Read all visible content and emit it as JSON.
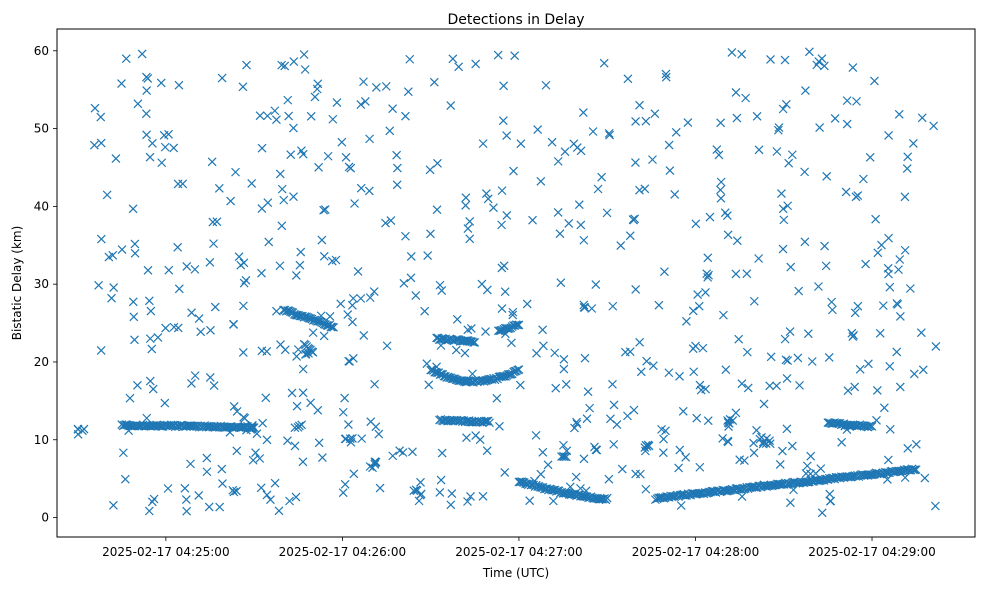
{
  "chart_data": {
    "type": "scatter",
    "title": "Detections in Delay",
    "xlabel": "Time (UTC)",
    "ylabel": "Bistatic Delay (km)",
    "marker": "x",
    "color": "#1f77b4",
    "xlim": [
      "2025-02-17 04:24:23",
      "2025-02-17 04:29:35"
    ],
    "ylim": [
      -2.5,
      62.8
    ],
    "x_ticks": [
      "2025-02-17 04:25:00",
      "2025-02-17 04:26:00",
      "2025-02-17 04:27:00",
      "2025-02-17 04:28:00",
      "2025-02-17 04:29:00"
    ],
    "y_ticks": [
      0,
      10,
      20,
      30,
      40,
      50,
      60
    ],
    "grid": false,
    "legend": false,
    "tracks": [
      {
        "t_start": "2025-02-17 04:25:40",
        "t_end": "2025-02-17 04:25:57",
        "y_start": 26.7,
        "y_end": 24.5,
        "shape": "linear"
      },
      {
        "t_start": "2025-02-17 04:25:47",
        "t_end": "2025-02-17 04:25:50",
        "y_start": 22.2,
        "y_end": 21.3,
        "shape": "linear"
      },
      {
        "t_start": "2025-02-17 04:26:30",
        "t_end": "2025-02-17 04:27:00",
        "y_start": 19.0,
        "y_end": 19.0,
        "y_mid": 17.5,
        "shape": "arc"
      },
      {
        "t_start": "2025-02-17 04:26:32",
        "t_end": "2025-02-17 04:26:45",
        "y_start": 23.0,
        "y_end": 22.6,
        "shape": "linear"
      },
      {
        "t_start": "2025-02-17 04:26:53",
        "t_end": "2025-02-17 04:27:00",
        "y_start": 24.0,
        "y_end": 24.8,
        "shape": "linear"
      },
      {
        "t_start": "2025-02-17 04:27:00",
        "t_end": "2025-02-17 04:27:30",
        "y_start": 4.7,
        "y_end": 2.4,
        "shape": "decay"
      },
      {
        "t_start": "2025-02-17 04:27:47",
        "t_end": "2025-02-17 04:29:15",
        "y_start": 2.5,
        "y_end": 6.2,
        "shape": "linear"
      },
      {
        "t_start": "2025-02-17 04:24:45",
        "t_end": "2025-02-17 04:25:30",
        "y_start": 11.9,
        "y_end": 11.6,
        "shape": "linear"
      },
      {
        "t_start": "2025-02-17 04:26:33",
        "t_end": "2025-02-17 04:26:50",
        "y_start": 12.5,
        "y_end": 12.3,
        "shape": "linear"
      },
      {
        "t_start": "2025-02-17 04:28:45",
        "t_end": "2025-02-17 04:29:00",
        "y_start": 12.2,
        "y_end": 11.7,
        "shape": "linear"
      }
    ],
    "clusters": [
      {
        "t": "2025-02-17 04:24:31",
        "y": 11.0
      },
      {
        "t": "2025-02-17 04:25:28",
        "y": 11.5
      },
      {
        "t": "2025-02-17 04:25:45",
        "y": 11.6
      },
      {
        "t": "2025-02-17 04:26:02",
        "y": 10.0
      },
      {
        "t": "2025-02-17 04:26:10",
        "y": 6.8
      },
      {
        "t": "2025-02-17 04:26:26",
        "y": 3.2
      },
      {
        "t": "2025-02-17 04:27:15",
        "y": 8.2
      },
      {
        "t": "2025-02-17 04:27:20",
        "y": 11.9
      },
      {
        "t": "2025-02-17 04:27:43",
        "y": 9.3
      },
      {
        "t": "2025-02-17 04:27:22",
        "y": 27.3
      },
      {
        "t": "2025-02-17 04:28:05",
        "y": 31.2
      },
      {
        "t": "2025-02-17 04:28:12",
        "y": 12.4
      },
      {
        "t": "2025-02-17 04:28:24",
        "y": 9.8
      },
      {
        "t": "2025-02-17 04:28:52",
        "y": 11.5
      }
    ],
    "noise": {
      "count": 630,
      "t_range": [
        "2025-02-17 04:24:35",
        "2025-02-17 04:29:22"
      ],
      "y_range": [
        0.5,
        60
      ]
    }
  }
}
